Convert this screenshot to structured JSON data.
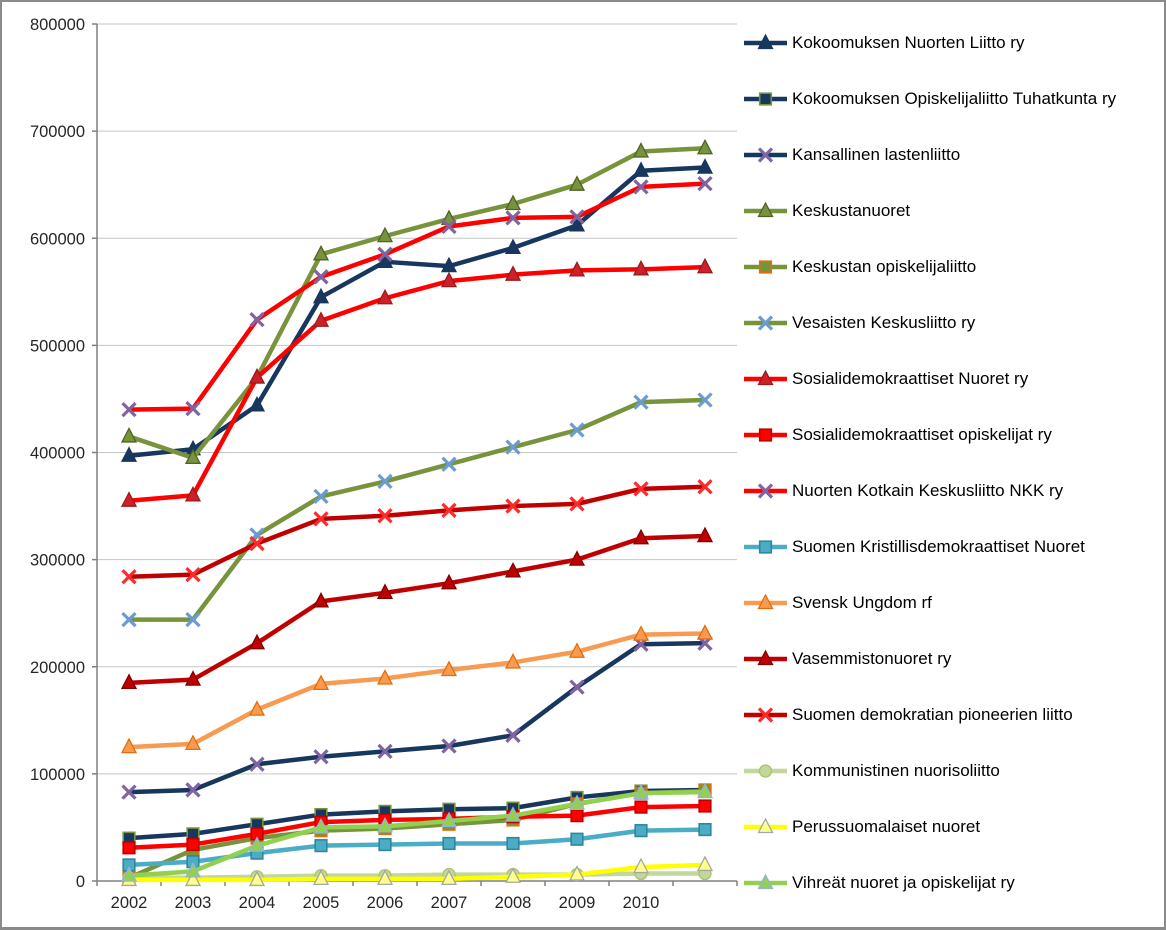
{
  "chart_data": {
    "type": "line",
    "title": "",
    "xlabel": "",
    "ylabel": "",
    "grid": true,
    "legend_position": "right",
    "ylim": [
      0,
      800000
    ],
    "y_axis": {
      "ticks": [
        0,
        100000,
        200000,
        300000,
        400000,
        500000,
        600000,
        700000,
        800000
      ],
      "labels": [
        "0",
        "100000",
        "200000",
        "300000",
        "400000",
        "500000",
        "600000",
        "700000",
        "800000"
      ]
    },
    "x_axis": {
      "labels": [
        "2002",
        "2003",
        "2004",
        "2005",
        "2006",
        "2007",
        "2008",
        "2009",
        "2010",
        ""
      ]
    },
    "colors": {
      "axis_text": "#262626",
      "axis_line": "#808080",
      "gridline": "#C6C6C6",
      "background": "#FFFFFF"
    },
    "series": [
      {
        "name": "Kokoomuksen Nuorten Liitto ry",
        "line_color": "#17375E",
        "marker": "triangle",
        "marker_fill": "#17375E",
        "marker_border": "#17375E",
        "icon": "triangle-marker-icon",
        "values": [
          397000,
          403000,
          444000,
          545000,
          578000,
          574000,
          591000,
          612000,
          663000,
          666000
        ]
      },
      {
        "name": "Kokoomuksen Opiskelijaliitto Tuhatkunta ry",
        "line_color": "#17375E",
        "marker": "square",
        "marker_fill": "#17375E",
        "marker_border": "#77933C",
        "icon": "square-marker-icon",
        "values": [
          40000,
          44000,
          53000,
          62000,
          65000,
          67000,
          68000,
          78000,
          84000,
          85000
        ]
      },
      {
        "name": "Kansallinen lastenliitto",
        "line_color": "#17375E",
        "marker": "x",
        "marker_fill": "#8064A2",
        "marker_border": "#8064A2",
        "icon": "x-marker-icon",
        "values": [
          83000,
          85000,
          109000,
          116000,
          121000,
          126000,
          136000,
          181000,
          221000,
          222000
        ]
      },
      {
        "name": "Keskustanuoret",
        "line_color": "#77933C",
        "marker": "triangle",
        "marker_fill": "#77933C",
        "marker_border": "#4F6228",
        "icon": "triangle-marker-icon",
        "values": [
          415000,
          395000,
          470000,
          585000,
          602000,
          618000,
          632000,
          650000,
          681000,
          684000
        ]
      },
      {
        "name": "Keskustan opiskelijaliitto",
        "line_color": "#77933C",
        "marker": "square",
        "marker_fill": "#77933C",
        "marker_border": "#E46C0A",
        "icon": "square-marker-icon",
        "values": [
          3000,
          29000,
          40000,
          47000,
          49000,
          53000,
          57000,
          72000,
          82000,
          84000
        ]
      },
      {
        "name": "Vesaisten Keskusliitto ry",
        "line_color": "#77933C",
        "marker": "x",
        "marker_fill": "#6B9BD2",
        "marker_border": "#6B9BD2",
        "icon": "x-marker-icon",
        "values": [
          244000,
          244000,
          323000,
          359000,
          373000,
          389000,
          405000,
          421000,
          447000,
          449000
        ]
      },
      {
        "name": "Sosialidemokraattiset Nuoret ry",
        "line_color": "#FF0000",
        "marker": "triangle",
        "marker_fill": "#D02027",
        "marker_border": "#981B1E",
        "icon": "triangle-marker-icon",
        "values": [
          355000,
          360000,
          470000,
          523000,
          544000,
          560000,
          566000,
          570000,
          571000,
          573000
        ]
      },
      {
        "name": "Sosialidemokraattiset opiskelijat ry",
        "line_color": "#FF0000",
        "marker": "square",
        "marker_fill": "#FF0000",
        "marker_border": "#C00000",
        "icon": "square-marker-icon",
        "values": [
          31000,
          34000,
          44000,
          55000,
          57000,
          58000,
          60000,
          61000,
          69000,
          70000
        ]
      },
      {
        "name": "Nuorten Kotkain Keskusliitto NKK ry",
        "line_color": "#FF0000",
        "marker": "x",
        "marker_fill": "#8064A2",
        "marker_border": "#8064A2",
        "icon": "x-marker-icon",
        "values": [
          440000,
          441000,
          524000,
          564000,
          585000,
          611000,
          619000,
          620000,
          648000,
          651000
        ]
      },
      {
        "name": "Suomen Kristillisdemokraattiset Nuoret",
        "line_color": "#4BACC6",
        "marker": "square",
        "marker_fill": "#4BACC6",
        "marker_border": "#31859C",
        "icon": "square-marker-icon",
        "values": [
          15000,
          18000,
          26000,
          33000,
          34000,
          35000,
          35000,
          39000,
          47000,
          48000
        ]
      },
      {
        "name": "Svensk Ungdom rf",
        "line_color": "#F79B52",
        "marker": "triangle",
        "marker_fill": "#F79B52",
        "marker_border": "#E46C0A",
        "icon": "triangle-marker-icon",
        "values": [
          125000,
          128000,
          160000,
          184000,
          189000,
          197000,
          204000,
          214000,
          230000,
          231000
        ]
      },
      {
        "name": "Vasemmistonuoret ry",
        "line_color": "#C00000",
        "marker": "triangle",
        "marker_fill": "#C00000",
        "marker_border": "#7F0000",
        "icon": "triangle-marker-icon",
        "values": [
          185000,
          188000,
          222000,
          261000,
          269000,
          278000,
          289000,
          300000,
          320000,
          322000
        ]
      },
      {
        "name": "Suomen demokratian pioneerien liitto",
        "line_color": "#C00000",
        "marker": "x",
        "marker_fill": "#FF2A2A",
        "marker_border": "#FF2A2A",
        "icon": "x-marker-icon",
        "values": [
          284000,
          286000,
          315000,
          338000,
          341000,
          346000,
          350000,
          352000,
          366000,
          368000
        ]
      },
      {
        "name": "Kommunistinen nuorisoliitto",
        "line_color": "#C3D69B",
        "marker": "circle",
        "marker_fill": "#C3D69B",
        "marker_border": "#A8C470",
        "icon": "circle-marker-icon",
        "values": [
          3000,
          3000,
          4000,
          5000,
          5000,
          6000,
          6000,
          6000,
          7000,
          7000
        ]
      },
      {
        "name": "Perussuomalaiset nuoret",
        "line_color": "#FFFF00",
        "marker": "triangle",
        "marker_fill": "#FFFF8F",
        "marker_border": "#A6A6A6",
        "icon": "triangle-marker-icon",
        "values": [
          1000,
          1000,
          1000,
          2000,
          2000,
          2000,
          4000,
          6000,
          13000,
          15000
        ]
      },
      {
        "name": "Vihreät nuoret ja opiskelijat ry",
        "line_color": "#92D050",
        "marker": "triangle",
        "marker_fill": "#92D050",
        "marker_border": "#95B3D7",
        "icon": "triangle-marker-icon",
        "values": [
          5000,
          9000,
          33000,
          50000,
          51000,
          56000,
          61000,
          72000,
          82000,
          83000
        ]
      }
    ]
  }
}
